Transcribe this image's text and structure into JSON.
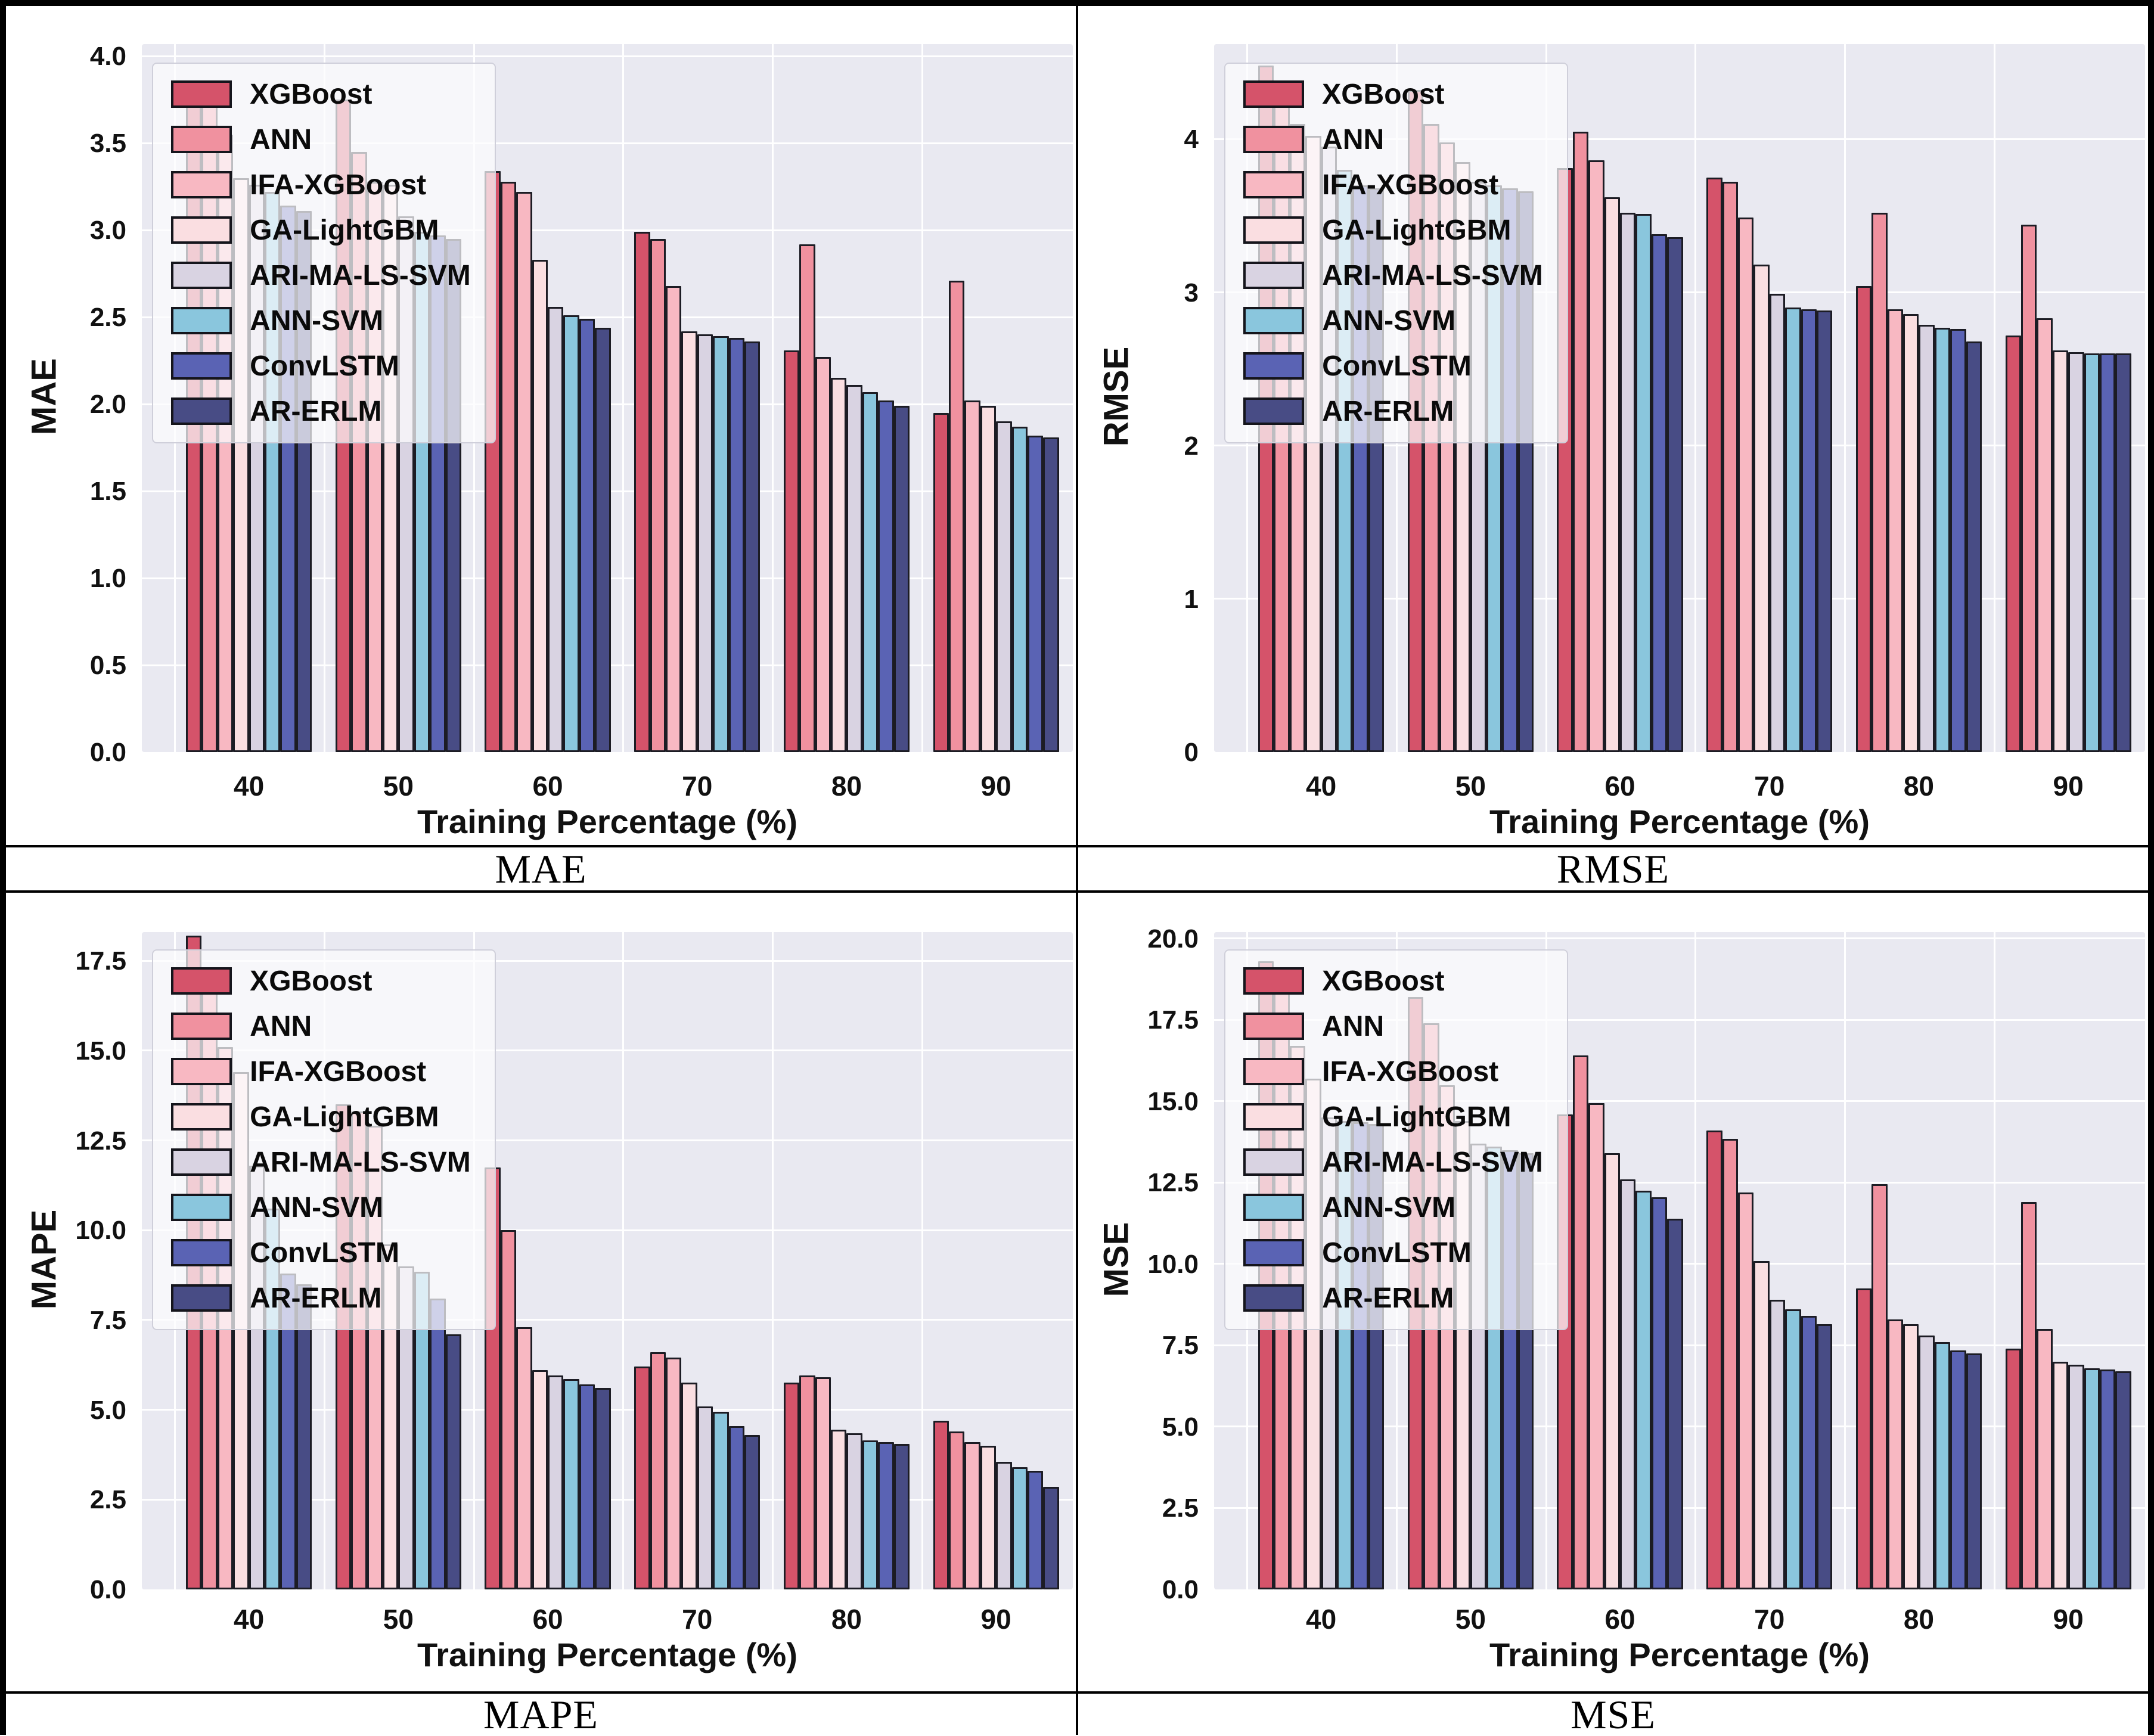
{
  "figure_name": "model-error-comparison-grid",
  "xlabel": "Training Percentage (%)",
  "categories": [
    "40",
    "50",
    "60",
    "70",
    "80",
    "90"
  ],
  "models": [
    {
      "name": "XGBoost",
      "color": "#D5536A"
    },
    {
      "name": "ANN",
      "color": "#F0919F"
    },
    {
      "name": "IFA-XGBoost",
      "color": "#F8B8C2"
    },
    {
      "name": "GA-LightGBM",
      "color": "#FADEE1"
    },
    {
      "name": "ARI-MA-LS-SVM",
      "color": "#D9D3E2"
    },
    {
      "name": "ANN-SVM",
      "color": "#8AC6DD"
    },
    {
      "name": "ConvLSTM",
      "color": "#5A63B4"
    },
    {
      "name": "AR-ERLM",
      "color": "#484C85"
    }
  ],
  "chart_data": [
    {
      "id": "mae",
      "type": "bar",
      "title": "MAE",
      "ylabel": "MAE",
      "xlabel": "Training Percentage (%)",
      "categories": [
        "40",
        "50",
        "60",
        "70",
        "80",
        "90"
      ],
      "ylim": [
        0,
        4.07
      ],
      "grid": true,
      "legend_position": "upper left",
      "yticks": [
        {
          "v": 0.0,
          "label": "0.0"
        },
        {
          "v": 0.5,
          "label": "0.5"
        },
        {
          "v": 1.0,
          "label": "1.0"
        },
        {
          "v": 1.5,
          "label": "1.5"
        },
        {
          "v": 2.0,
          "label": "2.0"
        },
        {
          "v": 2.5,
          "label": "2.5"
        },
        {
          "v": 3.0,
          "label": "3.0"
        },
        {
          "v": 3.5,
          "label": "3.5"
        },
        {
          "v": 4.0,
          "label": "4.0"
        }
      ],
      "series": [
        {
          "name": "XGBoost",
          "values": [
            3.79,
            3.75,
            3.34,
            2.99,
            2.31,
            1.95
          ]
        },
        {
          "name": "ANN",
          "values": [
            3.76,
            3.45,
            3.28,
            2.95,
            2.92,
            2.71
          ]
        },
        {
          "name": "IFA-XGBoost",
          "values": [
            3.55,
            3.28,
            3.22,
            2.68,
            2.27,
            2.02
          ]
        },
        {
          "name": "GA-LightGBM",
          "values": [
            3.3,
            3.26,
            2.83,
            2.42,
            2.15,
            1.99
          ]
        },
        {
          "name": "ARI-MA-LS-SVM",
          "values": [
            3.26,
            3.08,
            2.56,
            2.4,
            2.11,
            1.9
          ]
        },
        {
          "name": "ANN-SVM",
          "values": [
            3.22,
            2.99,
            2.51,
            2.39,
            2.07,
            1.87
          ]
        },
        {
          "name": "ConvLSTM",
          "values": [
            3.14,
            2.97,
            2.49,
            2.38,
            2.02,
            1.82
          ]
        },
        {
          "name": "AR-ERLM",
          "values": [
            3.11,
            2.95,
            2.44,
            2.36,
            1.99,
            1.81
          ]
        }
      ]
    },
    {
      "id": "rmse",
      "type": "bar",
      "title": "RMSE",
      "ylabel": "RMSE",
      "xlabel": "Training Percentage (%)",
      "categories": [
        "40",
        "50",
        "60",
        "70",
        "80",
        "90"
      ],
      "ylim": [
        0,
        4.62
      ],
      "grid": true,
      "legend_position": "upper left",
      "yticks": [
        {
          "v": 0,
          "label": "0"
        },
        {
          "v": 1,
          "label": "1"
        },
        {
          "v": 2,
          "label": "2"
        },
        {
          "v": 3,
          "label": "3"
        },
        {
          "v": 4,
          "label": "4"
        }
      ],
      "series": [
        {
          "name": "XGBoost",
          "values": [
            4.48,
            4.32,
            3.81,
            3.75,
            3.04,
            2.72
          ]
        },
        {
          "name": "ANN",
          "values": [
            4.28,
            4.1,
            4.05,
            3.72,
            3.52,
            3.44
          ]
        },
        {
          "name": "IFA-XGBoost",
          "values": [
            4.1,
            3.98,
            3.86,
            3.49,
            2.89,
            2.83
          ]
        },
        {
          "name": "GA-LightGBM",
          "values": [
            4.02,
            3.85,
            3.62,
            3.18,
            2.86,
            2.62
          ]
        },
        {
          "name": "ARI-MA-LS-SVM",
          "values": [
            3.95,
            3.72,
            3.52,
            2.99,
            2.79,
            2.61
          ]
        },
        {
          "name": "ANN-SVM",
          "values": [
            3.8,
            3.7,
            3.51,
            2.9,
            2.77,
            2.6
          ]
        },
        {
          "name": "ConvLSTM",
          "values": [
            3.7,
            3.68,
            3.38,
            2.89,
            2.76,
            2.6
          ]
        },
        {
          "name": "AR-ERLM",
          "values": [
            3.68,
            3.66,
            3.36,
            2.88,
            2.68,
            2.6
          ]
        }
      ]
    },
    {
      "id": "mape",
      "type": "bar",
      "title": "MAPE",
      "ylabel": "MAPE",
      "xlabel": "Training Percentage (%)",
      "categories": [
        "40",
        "50",
        "60",
        "70",
        "80",
        "90"
      ],
      "ylim": [
        0,
        18.3
      ],
      "grid": true,
      "legend_position": "upper left",
      "yticks": [
        {
          "v": 0.0,
          "label": "0.0"
        },
        {
          "v": 2.5,
          "label": "2.5"
        },
        {
          "v": 5.0,
          "label": "5.0"
        },
        {
          "v": 7.5,
          "label": "7.5"
        },
        {
          "v": 10.0,
          "label": "10.0"
        },
        {
          "v": 12.5,
          "label": "12.5"
        },
        {
          "v": 15.0,
          "label": "15.0"
        },
        {
          "v": 17.5,
          "label": "17.5"
        }
      ],
      "series": [
        {
          "name": "XGBoost",
          "values": [
            18.2,
            13.5,
            11.75,
            6.2,
            5.75,
            4.7
          ]
        },
        {
          "name": "ANN",
          "values": [
            17.3,
            13.3,
            10.0,
            6.6,
            5.95,
            4.4
          ]
        },
        {
          "name": "IFA-XGBoost",
          "values": [
            15.1,
            12.9,
            7.3,
            6.45,
            5.9,
            4.1
          ]
        },
        {
          "name": "GA-LightGBM",
          "values": [
            14.4,
            9.6,
            6.1,
            5.75,
            4.45,
            4.0
          ]
        },
        {
          "name": "ARI-MA-LS-SVM",
          "values": [
            11.8,
            9.0,
            5.95,
            5.1,
            4.35,
            3.55
          ]
        },
        {
          "name": "ANN-SVM",
          "values": [
            10.6,
            8.85,
            5.85,
            4.95,
            4.15,
            3.4
          ]
        },
        {
          "name": "ConvLSTM",
          "values": [
            8.8,
            8.1,
            5.7,
            4.55,
            4.1,
            3.3
          ]
        },
        {
          "name": "AR-ERLM",
          "values": [
            8.5,
            7.1,
            5.6,
            4.3,
            4.05,
            2.85
          ]
        }
      ]
    },
    {
      "id": "mse",
      "type": "bar",
      "title": "MSE",
      "ylabel": "MSE",
      "xlabel": "Training Percentage (%)",
      "categories": [
        "40",
        "50",
        "60",
        "70",
        "80",
        "90"
      ],
      "ylim": [
        0,
        20.2
      ],
      "grid": true,
      "legend_position": "upper left",
      "yticks": [
        {
          "v": 0.0,
          "label": "0.0"
        },
        {
          "v": 2.5,
          "label": "2.5"
        },
        {
          "v": 5.0,
          "label": "5.0"
        },
        {
          "v": 7.5,
          "label": "7.5"
        },
        {
          "v": 10.0,
          "label": "10.0"
        },
        {
          "v": 12.5,
          "label": "12.5"
        },
        {
          "v": 15.0,
          "label": "15.0"
        },
        {
          "v": 17.5,
          "label": "17.5"
        },
        {
          "v": 20.0,
          "label": "20.0"
        }
      ],
      "series": [
        {
          "name": "XGBoost",
          "values": [
            19.3,
            18.2,
            14.6,
            14.1,
            9.25,
            7.4
          ]
        },
        {
          "name": "ANN",
          "values": [
            18.6,
            17.4,
            16.4,
            13.85,
            12.45,
            11.9
          ]
        },
        {
          "name": "IFA-XGBoost",
          "values": [
            16.7,
            15.5,
            14.95,
            12.2,
            8.3,
            8.0
          ]
        },
        {
          "name": "GA-LightGBM",
          "values": [
            15.7,
            14.4,
            13.4,
            10.1,
            8.15,
            7.0
          ]
        },
        {
          "name": "ARI-MA-LS-SVM",
          "values": [
            14.5,
            13.7,
            12.6,
            8.9,
            7.8,
            6.9
          ]
        },
        {
          "name": "ANN-SVM",
          "values": [
            14.4,
            13.6,
            12.25,
            8.6,
            7.6,
            6.8
          ]
        },
        {
          "name": "ConvLSTM",
          "values": [
            14.35,
            13.5,
            12.05,
            8.4,
            7.35,
            6.75
          ]
        },
        {
          "name": "AR-ERLM",
          "values": [
            14.3,
            13.4,
            11.4,
            8.15,
            7.25,
            6.7
          ]
        }
      ]
    }
  ]
}
